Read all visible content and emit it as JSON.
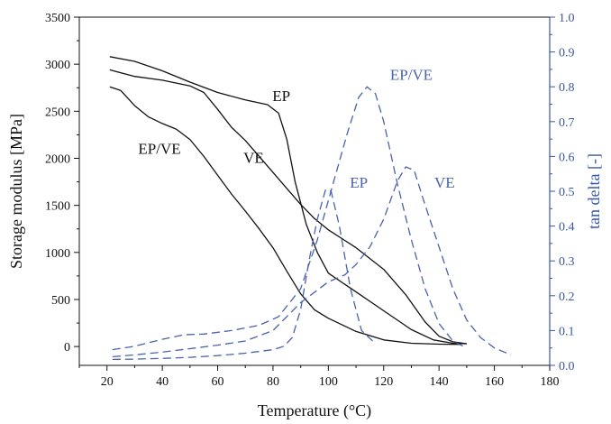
{
  "chart_data": {
    "type": "line",
    "xlabel": "Temperature (°C)",
    "ylabel_left": "Storage modulus [MPa]",
    "ylabel_right": "tan delta [-]",
    "xlim": [
      10,
      180
    ],
    "ylim_left": [
      -200,
      3500
    ],
    "ylim_right": [
      0.0,
      1.0
    ],
    "x_ticks": [
      20,
      40,
      60,
      80,
      100,
      120,
      140,
      160,
      180
    ],
    "y_left_ticks": [
      0,
      500,
      1000,
      1500,
      2000,
      2500,
      3000,
      3500
    ],
    "y_right_ticks": [
      "0.0",
      "0.1",
      "0.2",
      "0.3",
      "0.4",
      "0.5",
      "0.6",
      "0.7",
      "0.8",
      "0.9",
      "1.0"
    ],
    "colors": {
      "storage": "#111111",
      "tan_delta": "#4a62ad",
      "axis_right": "#3a56a8"
    },
    "grid": false,
    "storage_modulus": [
      {
        "name": "EP",
        "axis": "left",
        "style": "solid",
        "points": [
          [
            21,
            3080
          ],
          [
            30,
            3030
          ],
          [
            40,
            2930
          ],
          [
            50,
            2810
          ],
          [
            60,
            2700
          ],
          [
            70,
            2620
          ],
          [
            78,
            2570
          ],
          [
            82,
            2480
          ],
          [
            85,
            2200
          ],
          [
            88,
            1750
          ],
          [
            92,
            1300
          ],
          [
            96,
            1000
          ],
          [
            100,
            780
          ],
          [
            110,
            580
          ],
          [
            120,
            380
          ],
          [
            130,
            180
          ],
          [
            138,
            70
          ],
          [
            145,
            35
          ],
          [
            150,
            30
          ]
        ]
      },
      {
        "name": "VE",
        "axis": "left",
        "style": "solid",
        "points": [
          [
            21,
            2940
          ],
          [
            30,
            2870
          ],
          [
            40,
            2830
          ],
          [
            50,
            2770
          ],
          [
            55,
            2700
          ],
          [
            60,
            2520
          ],
          [
            65,
            2330
          ],
          [
            70,
            2190
          ],
          [
            75,
            2020
          ],
          [
            80,
            1850
          ],
          [
            85,
            1680
          ],
          [
            90,
            1510
          ],
          [
            95,
            1360
          ],
          [
            100,
            1240
          ],
          [
            110,
            1050
          ],
          [
            120,
            820
          ],
          [
            128,
            550
          ],
          [
            135,
            260
          ],
          [
            140,
            110
          ],
          [
            145,
            50
          ],
          [
            150,
            30
          ]
        ]
      },
      {
        "name": "EP/VE",
        "axis": "left",
        "style": "solid",
        "points": [
          [
            21,
            2760
          ],
          [
            25,
            2720
          ],
          [
            30,
            2560
          ],
          [
            35,
            2440
          ],
          [
            40,
            2370
          ],
          [
            45,
            2310
          ],
          [
            50,
            2200
          ],
          [
            55,
            2020
          ],
          [
            60,
            1820
          ],
          [
            65,
            1620
          ],
          [
            70,
            1440
          ],
          [
            75,
            1250
          ],
          [
            80,
            1050
          ],
          [
            85,
            800
          ],
          [
            90,
            560
          ],
          [
            95,
            390
          ],
          [
            100,
            300
          ],
          [
            110,
            160
          ],
          [
            120,
            70
          ],
          [
            130,
            35
          ],
          [
            140,
            25
          ],
          [
            148,
            22
          ]
        ]
      }
    ],
    "tan_delta": [
      {
        "name": "EP",
        "axis": "right",
        "style": "dashed",
        "points": [
          [
            22,
            0.017
          ],
          [
            30,
            0.018
          ],
          [
            40,
            0.02
          ],
          [
            50,
            0.023
          ],
          [
            60,
            0.028
          ],
          [
            70,
            0.035
          ],
          [
            80,
            0.045
          ],
          [
            84,
            0.055
          ],
          [
            87,
            0.08
          ],
          [
            90,
            0.16
          ],
          [
            93,
            0.3
          ],
          [
            96,
            0.42
          ],
          [
            99,
            0.505
          ],
          [
            101,
            0.5
          ],
          [
            104,
            0.4
          ],
          [
            108,
            0.22
          ],
          [
            112,
            0.1
          ],
          [
            116,
            0.07
          ]
        ]
      },
      {
        "name": "VE",
        "axis": "right",
        "style": "dashed",
        "points": [
          [
            22,
            0.025
          ],
          [
            30,
            0.03
          ],
          [
            40,
            0.038
          ],
          [
            50,
            0.048
          ],
          [
            60,
            0.058
          ],
          [
            70,
            0.07
          ],
          [
            80,
            0.1
          ],
          [
            90,
            0.18
          ],
          [
            100,
            0.24
          ],
          [
            106,
            0.26
          ],
          [
            110,
            0.29
          ],
          [
            115,
            0.34
          ],
          [
            120,
            0.42
          ],
          [
            125,
            0.53
          ],
          [
            128,
            0.57
          ],
          [
            131,
            0.56
          ],
          [
            135,
            0.46
          ],
          [
            140,
            0.34
          ],
          [
            145,
            0.22
          ],
          [
            150,
            0.13
          ],
          [
            155,
            0.08
          ],
          [
            160,
            0.05
          ],
          [
            166,
            0.03
          ]
        ]
      },
      {
        "name": "EP/VE",
        "axis": "right",
        "style": "dashed",
        "points": [
          [
            22,
            0.045
          ],
          [
            30,
            0.055
          ],
          [
            40,
            0.075
          ],
          [
            48,
            0.088
          ],
          [
            55,
            0.09
          ],
          [
            65,
            0.1
          ],
          [
            75,
            0.115
          ],
          [
            82,
            0.14
          ],
          [
            90,
            0.22
          ],
          [
            96,
            0.36
          ],
          [
            102,
            0.53
          ],
          [
            107,
            0.67
          ],
          [
            111,
            0.77
          ],
          [
            114,
            0.8
          ],
          [
            117,
            0.78
          ],
          [
            120,
            0.7
          ],
          [
            125,
            0.52
          ],
          [
            130,
            0.36
          ],
          [
            135,
            0.22
          ],
          [
            140,
            0.12
          ],
          [
            145,
            0.07
          ],
          [
            150,
            0.05
          ]
        ]
      }
    ],
    "annotations": [
      {
        "text": "EP",
        "x": 83,
        "y_axis": "left",
        "y": 2610,
        "color": "storage"
      },
      {
        "text": "VE",
        "x": 73,
        "y_axis": "left",
        "y": 1950,
        "color": "storage"
      },
      {
        "text": "EP/VE",
        "x": 39,
        "y_axis": "left",
        "y": 2050,
        "color": "storage"
      },
      {
        "text": "EP/VE",
        "x": 130,
        "y_axis": "right",
        "y": 0.82,
        "color": "tan_delta"
      },
      {
        "text": "EP",
        "x": 111,
        "y_axis": "right",
        "y": 0.51,
        "color": "tan_delta"
      },
      {
        "text": "VE",
        "x": 142,
        "y_axis": "right",
        "y": 0.51,
        "color": "tan_delta"
      }
    ]
  }
}
